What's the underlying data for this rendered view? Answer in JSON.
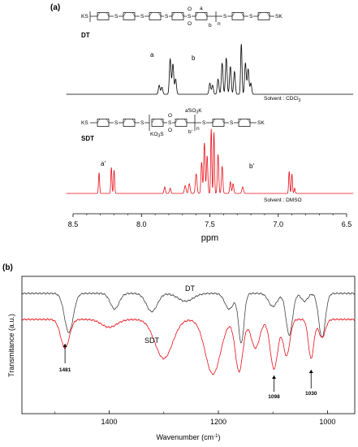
{
  "panel_a": {
    "label": "(a)",
    "dt": {
      "name": "DT",
      "end_left": "KS",
      "end_right": "SK",
      "s": "S",
      "o": "O",
      "sub_a": "a",
      "sub_b": "b",
      "sub_n": "n",
      "solvent": "Solvent : CDCl",
      "solvent_sub": "3",
      "peak_a": "a",
      "peak_b": "b"
    },
    "sdt": {
      "name": "SDT",
      "end_left": "KS",
      "end_right": "SK",
      "s": "S",
      "o": "O",
      "so3k": "SO",
      "so3k_sub": "3",
      "so3k_k": "K",
      "ko3s": "KO",
      "ko3s_sub": "3",
      "ko3s_s": "S",
      "sub_a": "a'",
      "sub_b": "b'",
      "sub_n": "n",
      "solvent": "Solvent : DMSO",
      "peak_a": "a'",
      "peak_b": "b'"
    }
  },
  "panel_b": {
    "label": "(b)",
    "annotations": [
      "1481",
      "1098",
      "1030"
    ]
  },
  "chart_data": [
    {
      "type": "line",
      "title": "",
      "xlabel": "ppm",
      "ylabel": "",
      "xlim": [
        8.5,
        6.5
      ],
      "x_reversed": true,
      "xticks": [
        "8.5",
        "8.0",
        "7.5",
        "7.0",
        "6.5"
      ],
      "xtick_values": [
        8.5,
        8.0,
        7.5,
        7.0,
        6.5
      ],
      "series": [
        {
          "name": "DT",
          "color": "#000000",
          "peaks": [
            {
              "x": 7.87,
              "h": 0.18,
              "w": 0.006
            },
            {
              "x": 7.85,
              "h": 0.14,
              "w": 0.006
            },
            {
              "x": 7.79,
              "h": 0.7,
              "w": 0.006
            },
            {
              "x": 7.77,
              "h": 0.6,
              "w": 0.006
            },
            {
              "x": 7.75,
              "h": 0.3,
              "w": 0.006
            },
            {
              "x": 7.5,
              "h": 0.22,
              "w": 0.006
            },
            {
              "x": 7.48,
              "h": 0.18,
              "w": 0.006
            },
            {
              "x": 7.44,
              "h": 0.3,
              "w": 0.006
            },
            {
              "x": 7.41,
              "h": 0.62,
              "w": 0.006
            },
            {
              "x": 7.38,
              "h": 0.72,
              "w": 0.006
            },
            {
              "x": 7.35,
              "h": 0.55,
              "w": 0.006
            },
            {
              "x": 7.32,
              "h": 0.45,
              "w": 0.006
            },
            {
              "x": 7.27,
              "h": 1.0,
              "w": 0.005
            },
            {
              "x": 7.24,
              "h": 0.62,
              "w": 0.006
            },
            {
              "x": 7.22,
              "h": 0.5,
              "w": 0.006
            },
            {
              "x": 7.2,
              "h": 0.22,
              "w": 0.006
            }
          ]
        },
        {
          "name": "SDT",
          "color": "#e8101a",
          "peaks": [
            {
              "x": 8.31,
              "h": 0.32,
              "w": 0.004
            },
            {
              "x": 8.22,
              "h": 0.4,
              "w": 0.004
            },
            {
              "x": 8.2,
              "h": 0.36,
              "w": 0.004
            },
            {
              "x": 7.83,
              "h": 0.1,
              "w": 0.005
            },
            {
              "x": 7.79,
              "h": 0.08,
              "w": 0.005
            },
            {
              "x": 7.68,
              "h": 0.12,
              "w": 0.006
            },
            {
              "x": 7.65,
              "h": 0.15,
              "w": 0.006
            },
            {
              "x": 7.6,
              "h": 0.3,
              "w": 0.006
            },
            {
              "x": 7.56,
              "h": 0.48,
              "w": 0.005
            },
            {
              "x": 7.54,
              "h": 0.78,
              "w": 0.005
            },
            {
              "x": 7.52,
              "h": 0.58,
              "w": 0.005
            },
            {
              "x": 7.49,
              "h": 1.0,
              "w": 0.004
            },
            {
              "x": 7.47,
              "h": 0.94,
              "w": 0.004
            },
            {
              "x": 7.44,
              "h": 0.6,
              "w": 0.005
            },
            {
              "x": 7.41,
              "h": 0.42,
              "w": 0.005
            },
            {
              "x": 7.35,
              "h": 0.18,
              "w": 0.005
            },
            {
              "x": 7.33,
              "h": 0.15,
              "w": 0.005
            },
            {
              "x": 7.26,
              "h": 0.1,
              "w": 0.006
            },
            {
              "x": 6.92,
              "h": 0.34,
              "w": 0.004
            },
            {
              "x": 6.9,
              "h": 0.3,
              "w": 0.004
            },
            {
              "x": 6.88,
              "h": 0.08,
              "w": 0.004
            }
          ]
        }
      ]
    },
    {
      "type": "line",
      "title": "",
      "xlabel": "Wavenumber (cm",
      "xlabel_sup": "-1",
      "xlabel_end": ")",
      "ylabel": "Transmitance (a.u.)",
      "xlim": [
        1560,
        950
      ],
      "x_reversed": true,
      "xticks": [
        "1400",
        "1200",
        "1000"
      ],
      "xtick_values": [
        1400,
        1200,
        1000
      ],
      "series": [
        {
          "name": "DT",
          "color": "#444444",
          "baseline": 0.1,
          "dips": [
            {
              "x": 1474,
              "d": 0.3,
              "w": 8
            },
            {
              "x": 1390,
              "d": 0.12,
              "w": 8
            },
            {
              "x": 1322,
              "d": 0.14,
              "w": 10
            },
            {
              "x": 1260,
              "d": 0.06,
              "w": 14
            },
            {
              "x": 1180,
              "d": 0.12,
              "w": 8
            },
            {
              "x": 1158,
              "d": 0.38,
              "w": 5
            },
            {
              "x": 1100,
              "d": 0.1,
              "w": 8
            },
            {
              "x": 1070,
              "d": 0.32,
              "w": 6
            },
            {
              "x": 1042,
              "d": 0.06,
              "w": 6
            },
            {
              "x": 1010,
              "d": 0.34,
              "w": 6
            }
          ]
        },
        {
          "name": "SDT",
          "color": "#e8101a",
          "baseline": 0.3,
          "dips": [
            {
              "x": 1481,
              "d": 0.22,
              "w": 8
            },
            {
              "x": 1400,
              "d": 0.06,
              "w": 14
            },
            {
              "x": 1300,
              "d": 0.3,
              "w": 16
            },
            {
              "x": 1210,
              "d": 0.42,
              "w": 14
            },
            {
              "x": 1162,
              "d": 0.4,
              "w": 7
            },
            {
              "x": 1132,
              "d": 0.22,
              "w": 8
            },
            {
              "x": 1098,
              "d": 0.38,
              "w": 7
            },
            {
              "x": 1075,
              "d": 0.28,
              "w": 6
            },
            {
              "x": 1030,
              "d": 0.3,
              "w": 5
            },
            {
              "x": 1010,
              "d": 0.14,
              "w": 6
            }
          ]
        }
      ]
    }
  ]
}
